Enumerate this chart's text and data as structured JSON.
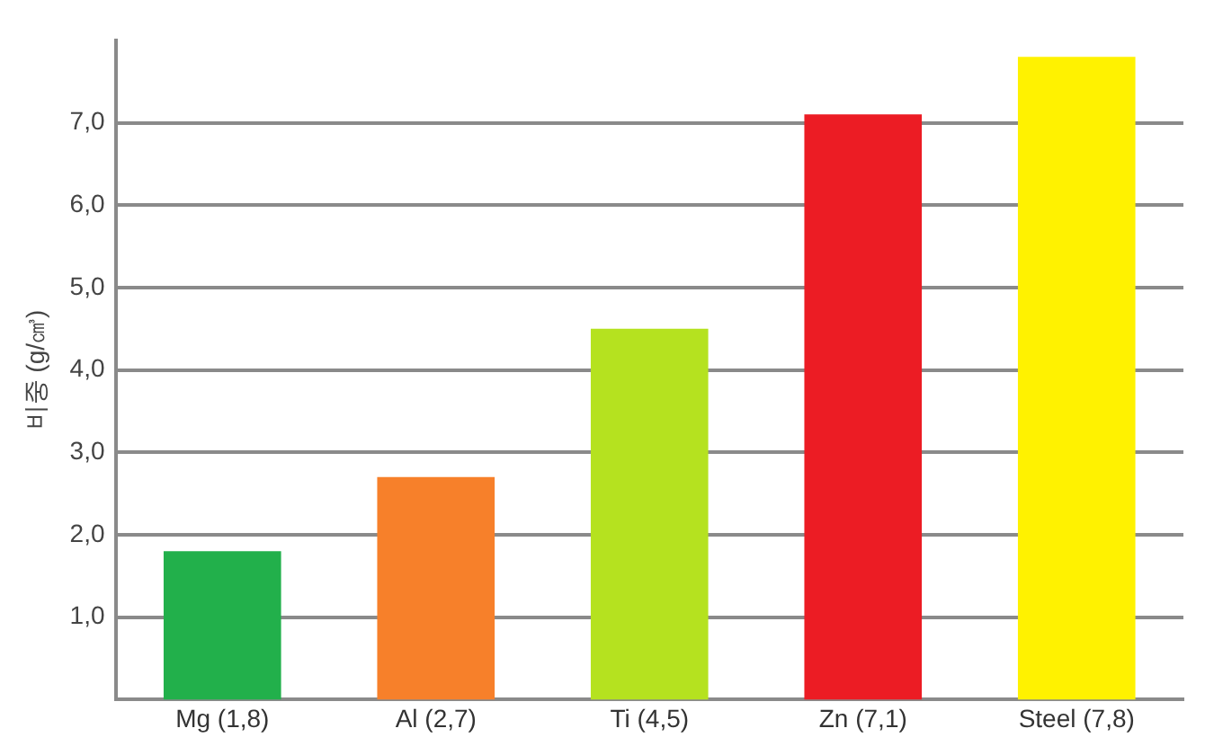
{
  "chart_data": {
    "type": "bar",
    "ylabel": "비중 (g/㎤)",
    "categories": [
      "Mg (1,8)",
      "Al (2,7)",
      "Ti (4,5)",
      "Zn (7,1)",
      "Steel (7,8)"
    ],
    "values": [
      1.8,
      2.7,
      4.5,
      7.1,
      7.8
    ],
    "colors": [
      "#22b04b",
      "#f7802a",
      "#b5e21f",
      "#ec1c24",
      "#fff200"
    ],
    "ylim": [
      0,
      8
    ],
    "yticks": [
      {
        "value": 1,
        "label": "1,0"
      },
      {
        "value": 2,
        "label": "2,0"
      },
      {
        "value": 3,
        "label": "3,0"
      },
      {
        "value": 4,
        "label": "4,0"
      },
      {
        "value": 5,
        "label": "5,0"
      },
      {
        "value": 6,
        "label": "6,0"
      },
      {
        "value": 7,
        "label": "7,0"
      }
    ],
    "grid": "y"
  }
}
